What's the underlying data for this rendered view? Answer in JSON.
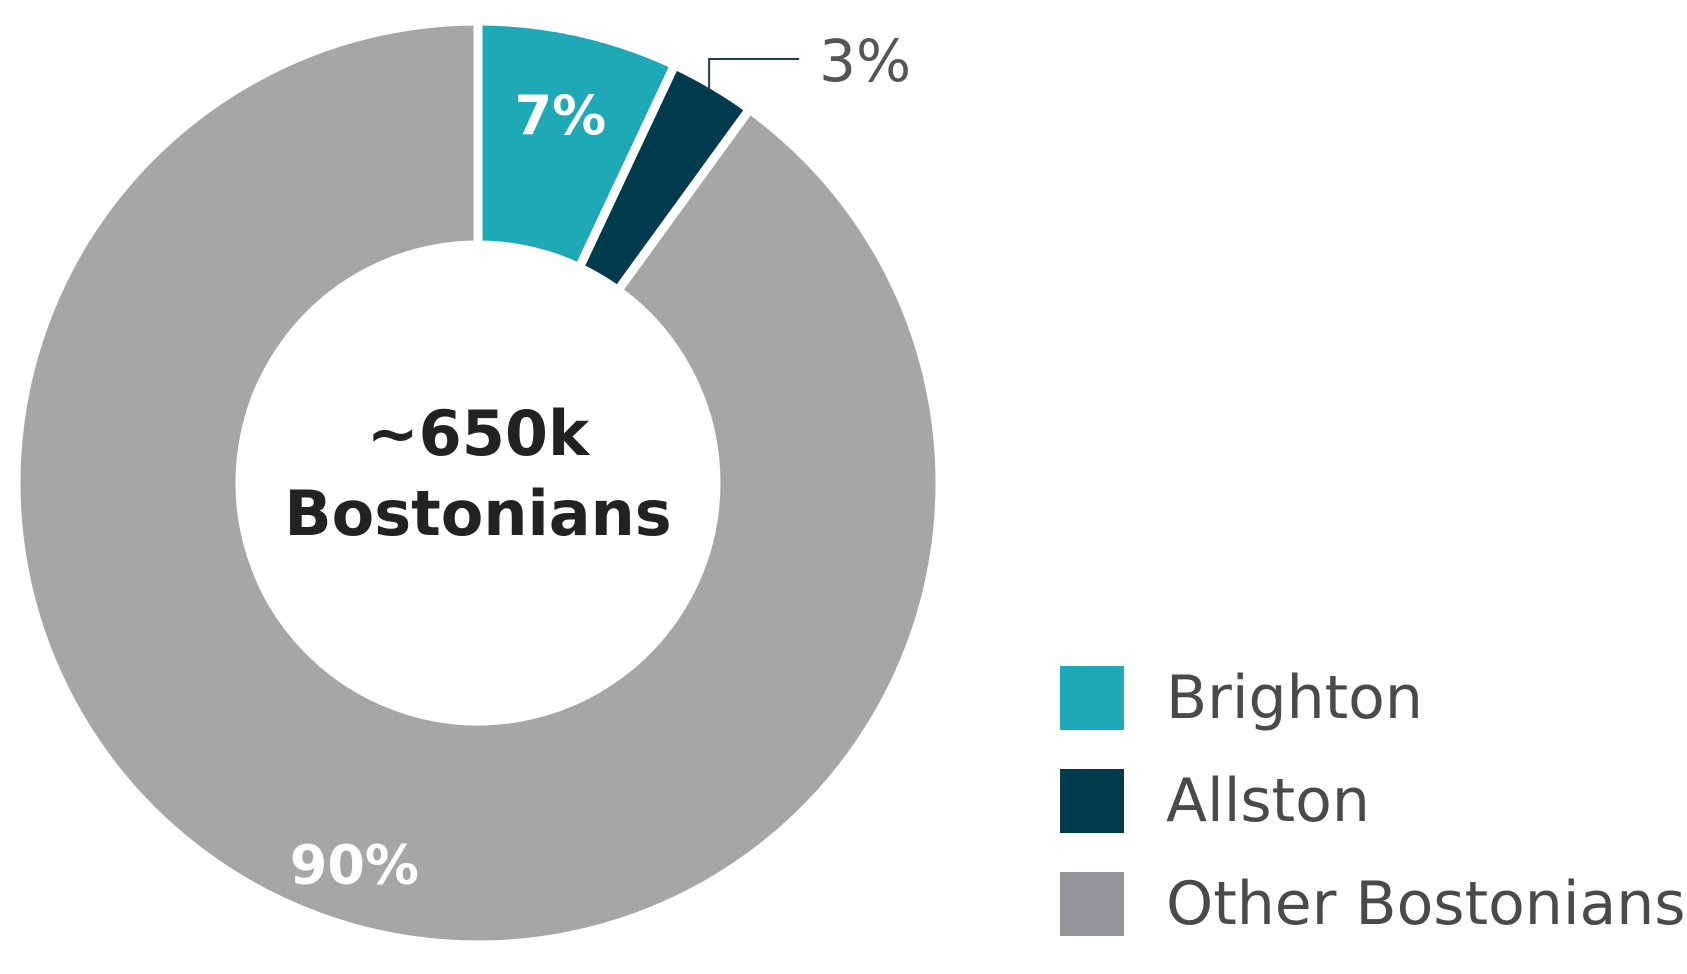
{
  "chart_data": {
    "type": "pie",
    "style": "donut",
    "center_label": [
      "~650k",
      "Bostonians"
    ],
    "slices": [
      {
        "label": "Brighton",
        "value": 7,
        "display": "7%",
        "color": "#1fa8b5"
      },
      {
        "label": "Allston",
        "value": 3,
        "display": "3%",
        "color": "#003b4d"
      },
      {
        "label": "Other Bostonians",
        "value": 90,
        "display": "90%",
        "color": "#a6a6a6"
      }
    ],
    "legend_position": "bottom-right"
  },
  "legend": {
    "items": [
      {
        "label": "Brighton",
        "color": "#1fa8b5"
      },
      {
        "label": "Allston",
        "color": "#003b4d"
      },
      {
        "label": "Other Bostonians",
        "color": "#939598"
      }
    ]
  }
}
